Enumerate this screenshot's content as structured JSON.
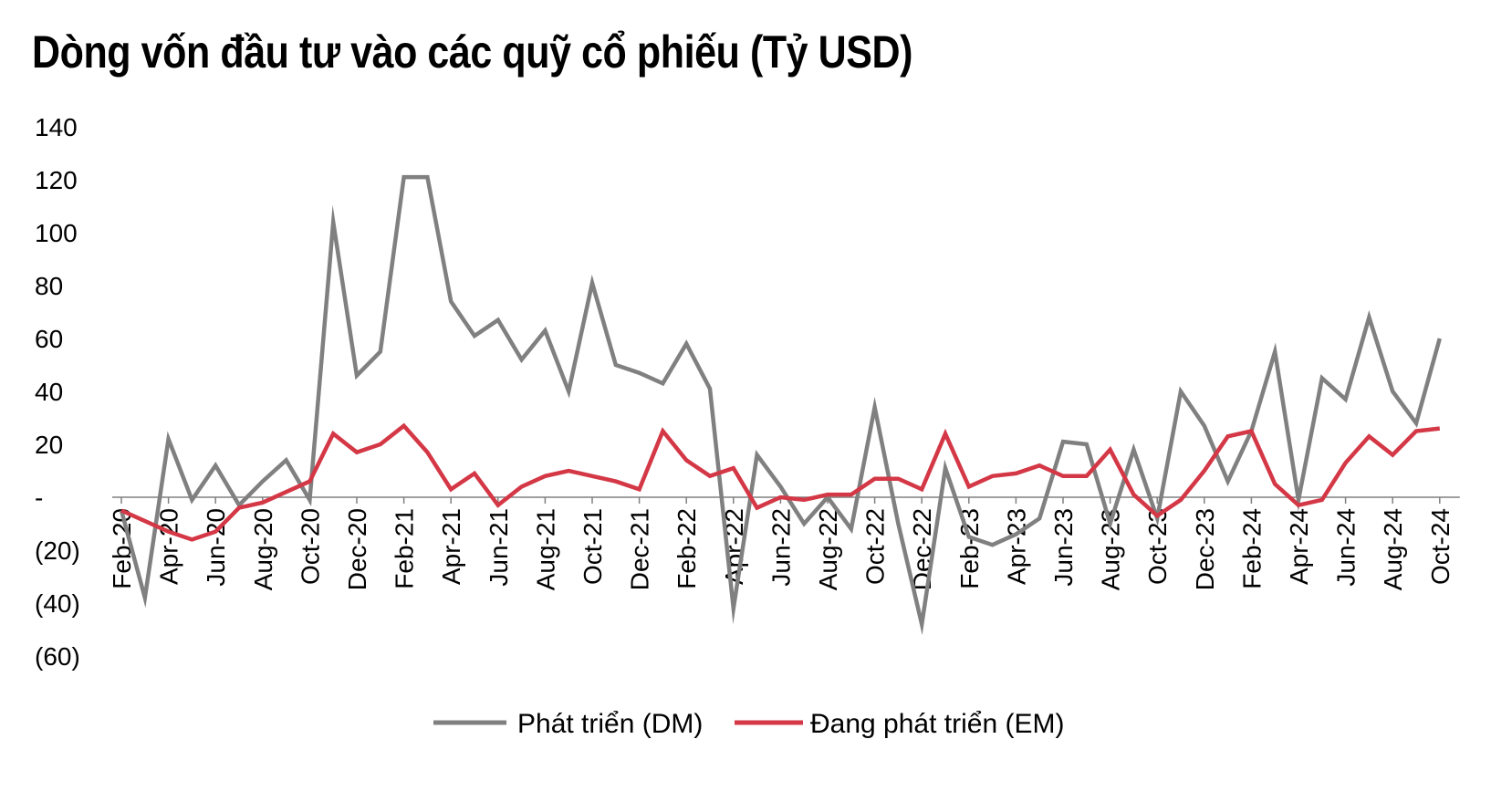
{
  "chart_data": {
    "type": "line",
    "title": "Dòng vốn đầu tư vào các quỹ cổ phiếu (Tỷ USD)",
    "xlabel": "",
    "ylabel": "",
    "ylim": [
      -60,
      140
    ],
    "yticks": [
      140,
      120,
      100,
      80,
      60,
      40,
      20,
      0,
      -20,
      -40,
      -60
    ],
    "ytick_labels": [
      "140",
      "120",
      "100",
      "80",
      "60",
      "40",
      "20",
      "-",
      "(20)",
      "(40)",
      "(60)"
    ],
    "grid": false,
    "legend_position": "bottom",
    "x": [
      "Feb-20",
      "Mar-20",
      "Apr-20",
      "May-20",
      "Jun-20",
      "Jul-20",
      "Aug-20",
      "Sep-20",
      "Oct-20",
      "Nov-20",
      "Dec-20",
      "Jan-21",
      "Feb-21",
      "Mar-21",
      "Apr-21",
      "May-21",
      "Jun-21",
      "Jul-21",
      "Aug-21",
      "Sep-21",
      "Oct-21",
      "Nov-21",
      "Dec-21",
      "Jan-22",
      "Feb-22",
      "Mar-22",
      "Apr-22",
      "May-22",
      "Jun-22",
      "Jul-22",
      "Aug-22",
      "Sep-22",
      "Oct-22",
      "Nov-22",
      "Dec-22",
      "Jan-23",
      "Feb-23",
      "Mar-23",
      "Apr-23",
      "May-23",
      "Jun-23",
      "Jul-23",
      "Aug-23",
      "Sep-23",
      "Oct-23",
      "Nov-23",
      "Dec-23",
      "Jan-24",
      "Feb-24",
      "Mar-24",
      "Apr-24",
      "May-24",
      "Jun-24",
      "Jul-24",
      "Aug-24",
      "Sep-24",
      "Oct-24"
    ],
    "x_tick_labels": [
      "Feb-20",
      "Apr-20",
      "Jun-20",
      "Aug-20",
      "Oct-20",
      "Dec-20",
      "Feb-21",
      "Apr-21",
      "Jun-21",
      "Aug-21",
      "Oct-21",
      "Dec-21",
      "Feb-22",
      "Apr-22",
      "Jun-22",
      "Aug-22",
      "Oct-22",
      "Dec-22",
      "Feb-23",
      "Apr-23",
      "Jun-23",
      "Aug-23",
      "Oct-23",
      "Dec-23",
      "Feb-24",
      "Apr-24",
      "Jun-24",
      "Aug-24",
      "Oct-24"
    ],
    "series": [
      {
        "name": "Phát triển (DM)",
        "color": "#808080",
        "values": [
          -5,
          -38,
          22,
          -1,
          12,
          -3,
          6,
          14,
          -1,
          104,
          46,
          55,
          121,
          121,
          74,
          61,
          67,
          52,
          63,
          40,
          81,
          50,
          47,
          43,
          58,
          41,
          -42,
          16,
          4,
          -10,
          0,
          -12,
          34,
          -10,
          -48,
          11,
          -15,
          -18,
          -14,
          -8,
          21,
          20,
          -10,
          18,
          -8,
          40,
          27,
          6,
          25,
          55,
          -1,
          45,
          37,
          68,
          40,
          28,
          60
        ]
      },
      {
        "name": "Đang phát triển (EM)",
        "color": "#d43745",
        "values": [
          -5,
          -9,
          -13,
          -16,
          -13,
          -4,
          -2,
          2,
          6,
          24,
          17,
          20,
          27,
          17,
          3,
          9,
          -3,
          4,
          8,
          10,
          8,
          6,
          3,
          25,
          14,
          8,
          11,
          -4,
          0,
          -1,
          1,
          1,
          7,
          7,
          3,
          24,
          4,
          8,
          9,
          12,
          8,
          8,
          18,
          1,
          -7,
          -1,
          10,
          23,
          25,
          5,
          -3,
          -1,
          13,
          23,
          16,
          25,
          26
        ]
      }
    ]
  }
}
